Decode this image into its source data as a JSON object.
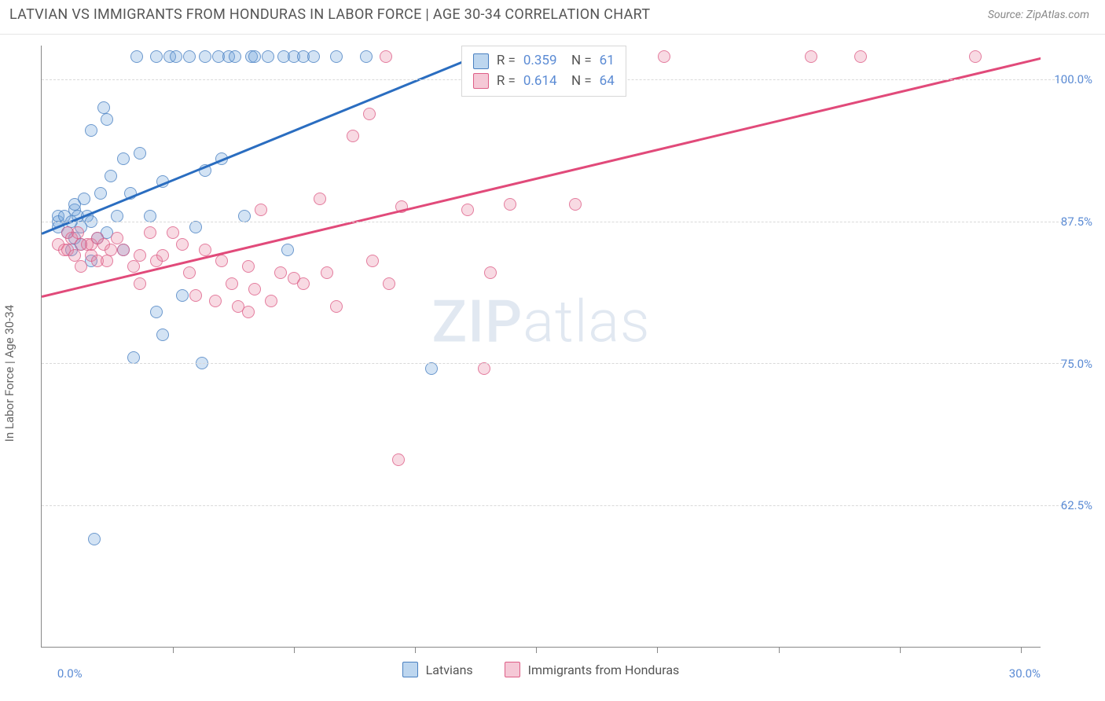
{
  "header": {
    "title": "LATVIAN VS IMMIGRANTS FROM HONDURAS IN LABOR FORCE | AGE 30-34 CORRELATION CHART",
    "source": "Source: ZipAtlas.com"
  },
  "chart": {
    "type": "scatter",
    "yaxis_title": "In Labor Force | Age 30-34",
    "watermark": "ZIPatlas",
    "background_color": "#ffffff",
    "grid_color": "#d9d9d9",
    "axis_color": "#888888",
    "label_color": "#5b8bd4",
    "title_color": "#555555",
    "title_fontsize": 18,
    "label_fontsize": 15,
    "marker_radius": 8,
    "xlim": [
      -0.5,
      30.0
    ],
    "ylim": [
      50.0,
      103.0
    ],
    "xticks": [
      3.5,
      7.2,
      10.9,
      14.6,
      18.3,
      22.0,
      25.7,
      29.4
    ],
    "xlabels": [
      {
        "value": "0.0%",
        "at": 0.0
      },
      {
        "value": "30.0%",
        "at": 30.0
      }
    ],
    "ygrid": [
      {
        "value": "62.5%",
        "at": 62.5
      },
      {
        "value": "75.0%",
        "at": 75.0
      },
      {
        "value": "87.5%",
        "at": 87.5
      },
      {
        "value": "100.0%",
        "at": 100.0
      }
    ],
    "series": [
      {
        "id": "latvians",
        "label": "Latvians",
        "marker_fill": "rgba(108,163,219,0.30)",
        "marker_stroke": "rgba(74,128,193,0.75)",
        "trend_color": "#2a6dc0",
        "trend": {
          "x1": -0.5,
          "y1": 86.5,
          "x2": 13.5,
          "y2": 103.0
        },
        "stats": {
          "R": "0.359",
          "N": "61"
        },
        "points": [
          [
            0.0,
            87.5
          ],
          [
            0.0,
            87.0
          ],
          [
            0.0,
            88.0
          ],
          [
            0.2,
            88.0
          ],
          [
            0.3,
            86.5
          ],
          [
            0.4,
            85.0
          ],
          [
            0.4,
            87.5
          ],
          [
            0.5,
            88.5
          ],
          [
            0.5,
            86.0
          ],
          [
            0.5,
            89.0
          ],
          [
            0.6,
            88.0
          ],
          [
            0.7,
            85.5
          ],
          [
            0.7,
            87.0
          ],
          [
            0.8,
            89.5
          ],
          [
            0.9,
            88.0
          ],
          [
            1.0,
            87.5
          ],
          [
            1.0,
            84.0
          ],
          [
            1.0,
            95.5
          ],
          [
            1.2,
            86.0
          ],
          [
            1.3,
            90.0
          ],
          [
            1.4,
            97.5
          ],
          [
            1.5,
            96.5
          ],
          [
            1.5,
            86.5
          ],
          [
            1.6,
            91.5
          ],
          [
            1.8,
            88.0
          ],
          [
            2.0,
            93.0
          ],
          [
            2.0,
            85.0
          ],
          [
            2.2,
            90.0
          ],
          [
            2.3,
            75.5
          ],
          [
            2.5,
            93.5
          ],
          [
            2.4,
            102.0
          ],
          [
            2.8,
            88.0
          ],
          [
            3.0,
            102.0
          ],
          [
            3.0,
            79.5
          ],
          [
            3.2,
            77.5
          ],
          [
            3.2,
            91.0
          ],
          [
            3.4,
            102.0
          ],
          [
            3.6,
            102.0
          ],
          [
            3.8,
            81.0
          ],
          [
            4.0,
            102.0
          ],
          [
            4.2,
            87.0
          ],
          [
            4.5,
            92.0
          ],
          [
            4.5,
            102.0
          ],
          [
            4.4,
            75.0
          ],
          [
            4.9,
            102.0
          ],
          [
            5.0,
            93.0
          ],
          [
            5.2,
            102.0
          ],
          [
            5.4,
            102.0
          ],
          [
            5.7,
            88.0
          ],
          [
            5.9,
            102.0
          ],
          [
            6.0,
            102.0
          ],
          [
            6.4,
            102.0
          ],
          [
            6.9,
            102.0
          ],
          [
            7.0,
            85.0
          ],
          [
            7.2,
            102.0
          ],
          [
            7.5,
            102.0
          ],
          [
            7.8,
            102.0
          ],
          [
            8.5,
            102.0
          ],
          [
            9.4,
            102.0
          ],
          [
            11.4,
            74.5
          ],
          [
            1.1,
            59.5
          ]
        ]
      },
      {
        "id": "honduras",
        "label": "Immigrants from Honduras",
        "marker_fill": "rgba(233,133,163,0.30)",
        "marker_stroke": "rgba(222,94,135,0.75)",
        "trend_color": "#e14a7a",
        "trend": {
          "x1": -0.5,
          "y1": 81.0,
          "x2": 30.0,
          "y2": 102.0
        },
        "stats": {
          "R": "0.614",
          "N": "64"
        },
        "points": [
          [
            0.0,
            85.5
          ],
          [
            0.2,
            85.0
          ],
          [
            0.3,
            86.5
          ],
          [
            0.3,
            85.0
          ],
          [
            0.4,
            86.0
          ],
          [
            0.5,
            84.5
          ],
          [
            0.6,
            86.5
          ],
          [
            0.7,
            83.5
          ],
          [
            0.7,
            85.5
          ],
          [
            0.9,
            85.5
          ],
          [
            1.0,
            84.5
          ],
          [
            1.0,
            85.5
          ],
          [
            1.2,
            84.0
          ],
          [
            1.2,
            86.0
          ],
          [
            1.4,
            85.5
          ],
          [
            1.5,
            84.0
          ],
          [
            1.6,
            85.0
          ],
          [
            1.8,
            86.0
          ],
          [
            2.0,
            85.0
          ],
          [
            2.3,
            83.5
          ],
          [
            2.5,
            82.0
          ],
          [
            2.5,
            84.5
          ],
          [
            2.8,
            86.5
          ],
          [
            3.0,
            84.0
          ],
          [
            3.2,
            84.5
          ],
          [
            3.5,
            86.5
          ],
          [
            3.8,
            85.5
          ],
          [
            4.0,
            83.0
          ],
          [
            4.2,
            81.0
          ],
          [
            4.5,
            85.0
          ],
          [
            4.8,
            80.5
          ],
          [
            5.0,
            84.0
          ],
          [
            5.3,
            82.0
          ],
          [
            5.5,
            80.0
          ],
          [
            5.8,
            83.5
          ],
          [
            5.8,
            79.5
          ],
          [
            6.0,
            81.5
          ],
          [
            6.2,
            88.5
          ],
          [
            6.5,
            80.5
          ],
          [
            6.8,
            83.0
          ],
          [
            7.2,
            82.5
          ],
          [
            7.5,
            82.0
          ],
          [
            8.0,
            89.5
          ],
          [
            8.2,
            83.0
          ],
          [
            8.5,
            80.0
          ],
          [
            9.0,
            95.0
          ],
          [
            9.5,
            97.0
          ],
          [
            9.6,
            84.0
          ],
          [
            10.0,
            102.0
          ],
          [
            10.1,
            82.0
          ],
          [
            10.4,
            66.5
          ],
          [
            10.5,
            88.8
          ],
          [
            12.5,
            88.5
          ],
          [
            13.0,
            74.5
          ],
          [
            13.2,
            83.0
          ],
          [
            13.8,
            89.0
          ],
          [
            14.5,
            102.0
          ],
          [
            15.2,
            102.0
          ],
          [
            15.8,
            89.0
          ],
          [
            16.5,
            102.0
          ],
          [
            18.5,
            102.0
          ],
          [
            23.0,
            102.0
          ],
          [
            24.5,
            102.0
          ],
          [
            28.0,
            102.0
          ]
        ]
      }
    ],
    "legend_bottom": [
      {
        "swatch": "blue",
        "label": "Latvians"
      },
      {
        "swatch": "pink",
        "label": "Immigrants from Honduras"
      }
    ]
  }
}
